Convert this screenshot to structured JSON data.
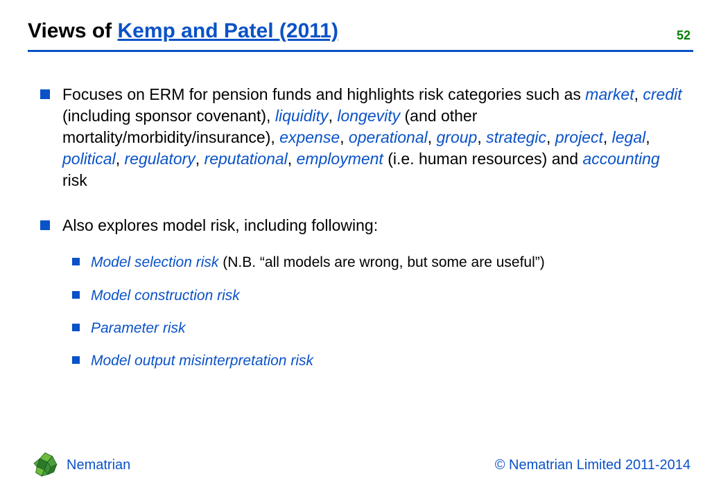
{
  "colors": {
    "brand_blue": "#0a52c7",
    "page_num_green": "#008000",
    "logo_dark_green": "#2a7a2a",
    "logo_light_green": "#6dbb3c",
    "logo_mid_green": "#4c9e3f",
    "text_black": "#000000",
    "background": "#ffffff"
  },
  "header": {
    "title_prefix": "Views of ",
    "title_link": "Kemp and Patel (2011)",
    "page_number": "52"
  },
  "bullets": [
    {
      "segments": [
        {
          "t": "Focuses on ERM for pension funds and highlights risk categories such as ",
          "s": "plain"
        },
        {
          "t": "market",
          "s": "ital"
        },
        {
          "t": ", ",
          "s": "plain"
        },
        {
          "t": "credit",
          "s": "ital"
        },
        {
          "t": " (including sponsor covenant), ",
          "s": "plain"
        },
        {
          "t": "liquidity",
          "s": "ital"
        },
        {
          "t": ", ",
          "s": "plain"
        },
        {
          "t": "longevity",
          "s": "ital"
        },
        {
          "t": " (and other mortality/morbidity/insurance), ",
          "s": "plain"
        },
        {
          "t": "expense",
          "s": "ital"
        },
        {
          "t": ", ",
          "s": "plain"
        },
        {
          "t": "operational",
          "s": "ital"
        },
        {
          "t": ", ",
          "s": "plain"
        },
        {
          "t": "group",
          "s": "ital"
        },
        {
          "t": ", ",
          "s": "plain"
        },
        {
          "t": "strategic",
          "s": "ital"
        },
        {
          "t": ", ",
          "s": "plain"
        },
        {
          "t": "project",
          "s": "ital"
        },
        {
          "t": ", ",
          "s": "plain"
        },
        {
          "t": "legal",
          "s": "ital"
        },
        {
          "t": ", ",
          "s": "plain"
        },
        {
          "t": "political",
          "s": "ital"
        },
        {
          "t": ", ",
          "s": "plain"
        },
        {
          "t": "regulatory",
          "s": "ital"
        },
        {
          "t": ", ",
          "s": "plain"
        },
        {
          "t": "reputational",
          "s": "ital"
        },
        {
          "t": ", ",
          "s": "plain"
        },
        {
          "t": "employment",
          "s": "ital"
        },
        {
          "t": " (i.e. human resources) and ",
          "s": "plain"
        },
        {
          "t": "accounting",
          "s": "ital"
        },
        {
          "t": " risk",
          "s": "plain"
        }
      ]
    },
    {
      "segments": [
        {
          "t": "Also explores model risk, including following:",
          "s": "plain"
        }
      ],
      "sub": [
        {
          "segments": [
            {
              "t": "Model selection risk",
              "s": "ital"
            },
            {
              "t": " (N.B. “all models are wrong, but some are useful”)",
              "s": "plain"
            }
          ]
        },
        {
          "segments": [
            {
              "t": "Model construction risk",
              "s": "ital"
            }
          ]
        },
        {
          "segments": [
            {
              "t": "Parameter risk",
              "s": "ital"
            }
          ]
        },
        {
          "segments": [
            {
              "t": "Model output misinterpretation risk",
              "s": "ital"
            }
          ]
        }
      ]
    }
  ],
  "footer": {
    "brand": "Nematrian",
    "copyright": "© Nematrian Limited 2011-2014"
  }
}
